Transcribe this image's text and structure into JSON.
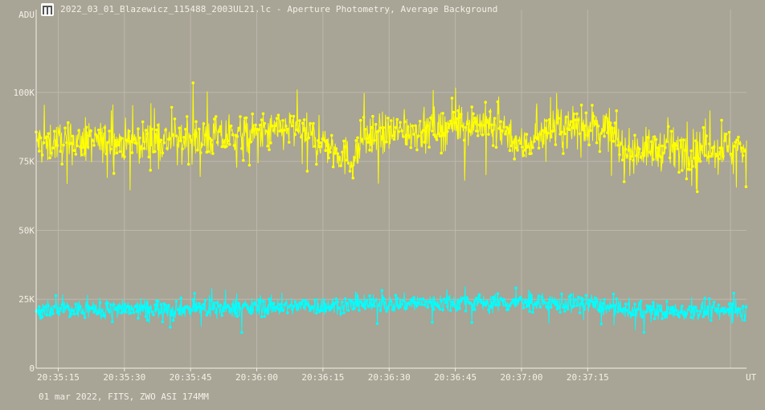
{
  "window": {
    "title": "2022_03_01_Blazewicz_115488_2003UL21.lc - Aperture Photometry, Average Background",
    "icon": "app-icon"
  },
  "footer": {
    "info": "01 mar 2022, FITS, ZWO ASI 174MM"
  },
  "colors": {
    "background": "#a8a496",
    "grid": "#bcb8ac",
    "text": "#f4f1e6",
    "series_target": "#ffff00",
    "series_background": "#00ffff"
  },
  "chart_data": {
    "type": "scatter",
    "ylabel": "ADU",
    "xlabel": "UT",
    "ylim": [
      0,
      130000
    ],
    "xlim": [
      "20:35:10",
      "20:37:51"
    ],
    "yticks": [
      {
        "value": 0,
        "label": "0"
      },
      {
        "value": 25000,
        "label": "25K"
      },
      {
        "value": 50000,
        "label": "50K"
      },
      {
        "value": 75000,
        "label": "75K"
      },
      {
        "value": 100000,
        "label": "100K"
      }
    ],
    "xticks": [
      "20:35:15",
      "20:35:30",
      "20:35:45",
      "20:36:00",
      "20:36:15",
      "20:36:30",
      "20:36:45",
      "20:37:00",
      "20:37:15"
    ],
    "grid": true,
    "series": [
      {
        "color": "#ffff00",
        "trend": [
          {
            "t": "20:35:10",
            "mean": 82000
          },
          {
            "t": "20:35:30",
            "mean": 82000
          },
          {
            "t": "20:35:45",
            "mean": 83000
          },
          {
            "t": "20:36:00",
            "mean": 84500
          },
          {
            "t": "20:36:08",
            "mean": 87000
          },
          {
            "t": "20:36:15",
            "mean": 82000
          },
          {
            "t": "20:36:22",
            "mean": 75000
          },
          {
            "t": "20:36:24",
            "mean": 84000
          },
          {
            "t": "20:36:35",
            "mean": 86000
          },
          {
            "t": "20:36:50",
            "mean": 89000
          },
          {
            "t": "20:36:57",
            "mean": 86000
          },
          {
            "t": "20:37:00",
            "mean": 80000
          },
          {
            "t": "20:37:05",
            "mean": 86000
          },
          {
            "t": "20:37:15",
            "mean": 88000
          },
          {
            "t": "20:37:20",
            "mean": 87000
          },
          {
            "t": "20:37:23",
            "mean": 79000
          },
          {
            "t": "20:37:51",
            "mean": 80000
          }
        ],
        "scatter": 6500,
        "range": [
          64000,
          104500
        ]
      },
      {
        "color": "#00ffff",
        "trend": [
          {
            "t": "20:35:10",
            "mean": 21000
          },
          {
            "t": "20:36:00",
            "mean": 22000
          },
          {
            "t": "20:36:45",
            "mean": 24000
          },
          {
            "t": "20:37:15",
            "mean": 23500
          },
          {
            "t": "20:37:25",
            "mean": 20500
          },
          {
            "t": "20:37:51",
            "mean": 21000
          }
        ],
        "scatter": 3000,
        "range": [
          11000,
          32000
        ]
      }
    ]
  }
}
